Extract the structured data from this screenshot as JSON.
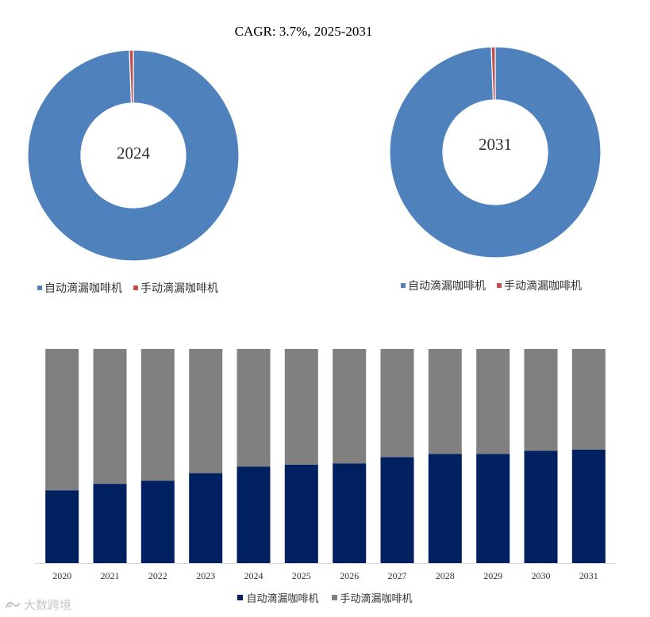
{
  "header": {
    "cagr": "CAGR:   3.7%, 2025-2031"
  },
  "colors": {
    "auto_donut": "#4F81BD",
    "manual_donut": "#C0504D",
    "auto_bar": "#002060",
    "manual_bar": "#808080"
  },
  "chart_data": [
    {
      "type": "pie",
      "center_label": "2024",
      "labels": [
        "自动滴漏咖啡机",
        "手动滴漏咖啡机"
      ],
      "values": [
        99.4,
        0.6
      ]
    },
    {
      "type": "pie",
      "center_label": "2031",
      "labels": [
        "自动滴漏咖啡机",
        "手动滴漏咖啡机"
      ],
      "values": [
        99.4,
        0.6
      ]
    },
    {
      "type": "bar",
      "stacked": true,
      "categories": [
        "2020",
        "2021",
        "2022",
        "2023",
        "2024",
        "2025",
        "2026",
        "2027",
        "2028",
        "2029",
        "2030",
        "2031"
      ],
      "series": [
        {
          "name": "自动滴漏咖啡机",
          "values": [
            34,
            37,
            38.5,
            42,
            45,
            46,
            46.5,
            49.5,
            51,
            51,
            52.5,
            53
          ]
        },
        {
          "name": "手动滴漏咖啡机",
          "values": [
            66,
            63,
            61.5,
            58,
            55,
            54,
            53.5,
            50.5,
            49,
            49,
            47.5,
            47
          ]
        }
      ],
      "ylim": [
        0,
        100
      ]
    }
  ],
  "watermark": {
    "text": "大数跨境"
  }
}
